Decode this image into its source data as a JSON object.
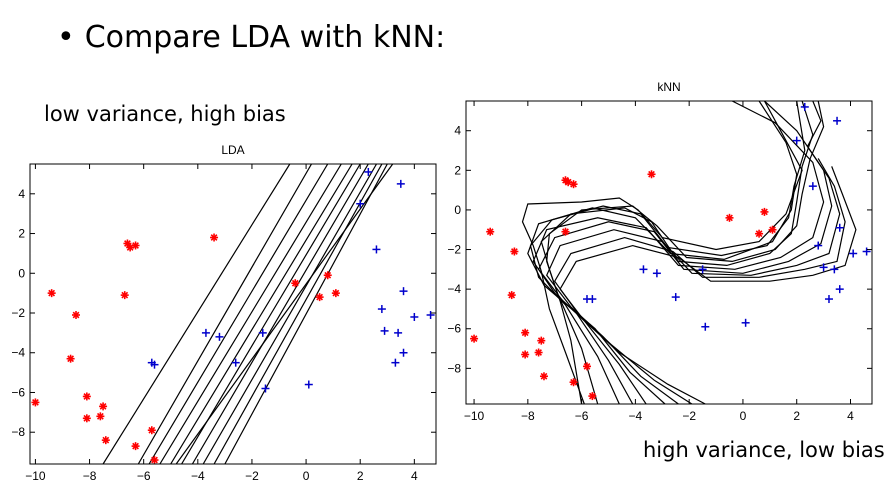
{
  "slide": {
    "bullet": "•",
    "heading": "Compare LDA with kNN:",
    "left_caption": "low variance, high bias",
    "right_caption": "high variance, low bias"
  },
  "colors": {
    "red_class": "#ff0000",
    "blue_class": "#0000cc",
    "boundary": "#000000"
  },
  "chart_data": [
    {
      "type": "scatter",
      "title": "LDA",
      "xlim": [
        -10.2,
        4.8
      ],
      "ylim": [
        -9.6,
        5.5
      ],
      "xticks": [
        -10,
        -8,
        -6,
        -4,
        -2,
        0,
        2,
        4
      ],
      "yticks": [
        4,
        2,
        0,
        -2,
        -4,
        -6,
        -8
      ],
      "grid": false,
      "series": [
        {
          "marker": "asterisk",
          "color": "#ff0000",
          "x": [
            -10.0,
            -9.4,
            -8.5,
            -8.7,
            -8.1,
            -8.1,
            -7.6,
            -7.5,
            -7.4,
            -6.6,
            -6.5,
            -6.3,
            -6.7,
            -5.7,
            -5.6,
            -6.3,
            -3.4,
            -0.4,
            0.5,
            0.8,
            1.1
          ],
          "y": [
            -6.5,
            -1.0,
            -2.1,
            -4.3,
            -6.2,
            -7.3,
            -7.2,
            -6.7,
            -8.4,
            1.5,
            1.3,
            -8.7,
            -1.1,
            -7.9,
            -9.4,
            1.4,
            1.8,
            -0.5,
            -1.2,
            -0.1,
            -1.0
          ]
        },
        {
          "marker": "plus",
          "color": "#0000cc",
          "x": [
            -5.7,
            -5.6,
            -3.7,
            -3.2,
            -2.6,
            -1.6,
            -1.5,
            0.1,
            2.0,
            2.3,
            2.6,
            2.8,
            2.9,
            3.3,
            3.4,
            3.5,
            3.6,
            3.6,
            4.0,
            4.6
          ],
          "y": [
            -4.5,
            -4.6,
            -3.0,
            -3.2,
            -4.5,
            -3.0,
            -5.8,
            -5.6,
            3.5,
            5.1,
            1.2,
            -1.8,
            -2.9,
            -4.5,
            -3.0,
            4.5,
            -4.0,
            -0.9,
            -2.2,
            -2.1
          ]
        }
      ],
      "boundaries": [
        [
          [
            -6.2,
            -9.6
          ],
          [
            0.2,
            5.5
          ]
        ],
        [
          [
            -5.8,
            -9.6
          ],
          [
            0.8,
            5.5
          ]
        ],
        [
          [
            -5.4,
            -9.6
          ],
          [
            1.3,
            5.5
          ]
        ],
        [
          [
            -5.0,
            -9.6
          ],
          [
            1.7,
            5.5
          ]
        ],
        [
          [
            -4.6,
            -9.6
          ],
          [
            2.0,
            5.5
          ]
        ],
        [
          [
            -4.2,
            -9.6
          ],
          [
            2.3,
            5.5
          ]
        ],
        [
          [
            -3.8,
            -9.6
          ],
          [
            2.6,
            5.5
          ]
        ],
        [
          [
            -3.4,
            -9.6
          ],
          [
            2.8,
            5.5
          ]
        ],
        [
          [
            -3.0,
            -9.6
          ],
          [
            3.0,
            5.5
          ]
        ],
        [
          [
            -7.5,
            -9.6
          ],
          [
            -0.6,
            5.5
          ]
        ],
        [
          [
            -4.8,
            -9.6
          ],
          [
            3.2,
            5.5
          ]
        ]
      ]
    },
    {
      "type": "scatter",
      "title": "kNN",
      "xlim": [
        -10.3,
        4.8
      ],
      "ylim": [
        -9.8,
        5.5
      ],
      "xticks": [
        -10,
        -8,
        -6,
        -4,
        -2,
        0,
        2,
        4
      ],
      "yticks": [
        4,
        2,
        0,
        -2,
        -4,
        -6,
        -8
      ],
      "grid": false,
      "series": [
        {
          "marker": "asterisk",
          "color": "#ff0000",
          "x": [
            -10.0,
            -9.4,
            -8.5,
            -8.6,
            -8.1,
            -8.1,
            -7.6,
            -7.5,
            -7.4,
            -6.6,
            -6.5,
            -6.3,
            -6.6,
            -5.8,
            -5.6,
            -6.3,
            -3.4,
            -0.5,
            0.6,
            0.8,
            1.1
          ],
          "y": [
            -6.5,
            -1.1,
            -2.1,
            -4.3,
            -6.2,
            -7.3,
            -7.2,
            -6.6,
            -8.4,
            1.5,
            1.4,
            -8.7,
            -1.1,
            -7.9,
            -9.4,
            1.3,
            1.8,
            -0.4,
            -1.2,
            -0.1,
            -1.0
          ]
        },
        {
          "marker": "plus",
          "color": "#0000cc",
          "x": [
            -5.8,
            -5.6,
            -3.7,
            -3.2,
            -2.5,
            -1.5,
            -1.4,
            0.1,
            2.0,
            2.3,
            2.6,
            2.8,
            3.0,
            3.2,
            3.4,
            3.5,
            3.6,
            3.6,
            4.1,
            4.6
          ],
          "y": [
            -4.5,
            -4.5,
            -3.0,
            -3.2,
            -4.4,
            -3.0,
            -5.9,
            -5.7,
            3.5,
            5.2,
            1.2,
            -1.8,
            -2.9,
            -4.5,
            -3.0,
            4.5,
            -4.0,
            -0.9,
            -2.2,
            -2.1
          ]
        }
      ],
      "boundaries": [
        [
          [
            -6.0,
            -9.8
          ],
          [
            -6.4,
            -6.6
          ],
          [
            -6.8,
            -4.6
          ],
          [
            -7.2,
            -3.0
          ],
          [
            -7.5,
            -1.6
          ],
          [
            -6.4,
            -0.2
          ],
          [
            -4.4,
            0.1
          ],
          [
            -3.4,
            -0.6
          ],
          [
            -2.4,
            -2.6
          ],
          [
            -0.6,
            -2.8
          ],
          [
            1.0,
            -2.2
          ],
          [
            1.8,
            -1.2
          ],
          [
            2.0,
            0.4
          ],
          [
            2.2,
            2.2
          ],
          [
            2.6,
            3.8
          ],
          [
            2.2,
            5.5
          ]
        ],
        [
          [
            -5.4,
            -9.8
          ],
          [
            -6.0,
            -7.0
          ],
          [
            -6.9,
            -4.2
          ],
          [
            -7.3,
            -2.6
          ],
          [
            -7.2,
            -1.2
          ],
          [
            -6.0,
            0.0
          ],
          [
            -4.1,
            0.2
          ],
          [
            -3.2,
            -0.8
          ],
          [
            -2.1,
            -2.4
          ],
          [
            -0.4,
            -2.6
          ],
          [
            1.2,
            -2.0
          ],
          [
            2.0,
            -0.8
          ],
          [
            2.2,
            0.8
          ],
          [
            2.5,
            2.6
          ],
          [
            3.0,
            4.2
          ],
          [
            2.8,
            5.5
          ]
        ],
        [
          [
            -4.6,
            -9.8
          ],
          [
            -5.4,
            -7.4
          ],
          [
            -6.6,
            -4.8
          ],
          [
            -7.6,
            -3.4
          ],
          [
            -7.9,
            -1.8
          ],
          [
            -7.1,
            -0.5
          ],
          [
            -5.2,
            0.2
          ],
          [
            -3.8,
            -0.2
          ],
          [
            -2.8,
            -1.9
          ],
          [
            -0.8,
            -2.3
          ],
          [
            0.9,
            -1.8
          ],
          [
            1.7,
            -0.4
          ],
          [
            1.9,
            1.2
          ],
          [
            2.3,
            3.0
          ],
          [
            2.0,
            5.5
          ]
        ],
        [
          [
            -4.1,
            -9.8
          ],
          [
            -5.0,
            -7.6
          ],
          [
            -6.2,
            -5.2
          ],
          [
            -7.4,
            -3.8
          ],
          [
            -8.0,
            -2.2
          ],
          [
            -7.6,
            -0.7
          ],
          [
            -5.6,
            0.1
          ],
          [
            -4.0,
            -0.4
          ],
          [
            -2.7,
            -2.2
          ],
          [
            -0.7,
            -2.5
          ],
          [
            1.1,
            -1.6
          ],
          [
            1.8,
            0.0
          ],
          [
            2.0,
            1.8
          ],
          [
            1.6,
            3.4
          ],
          [
            0.6,
            5.5
          ]
        ],
        [
          [
            -3.6,
            -9.8
          ],
          [
            -4.6,
            -7.8
          ],
          [
            -5.9,
            -5.6
          ],
          [
            -7.0,
            -4.2
          ],
          [
            -7.8,
            -2.6
          ],
          [
            -7.3,
            -1.0
          ],
          [
            -5.4,
            -0.4
          ],
          [
            -3.6,
            -0.9
          ],
          [
            -2.4,
            -2.8
          ],
          [
            -0.3,
            -3.0
          ],
          [
            1.4,
            -2.4
          ],
          [
            2.6,
            -1.4
          ],
          [
            3.0,
            0.4
          ],
          [
            2.6,
            2.4
          ],
          [
            1.2,
            4.4
          ],
          [
            -0.4,
            5.5
          ]
        ],
        [
          [
            -2.9,
            -9.8
          ],
          [
            -4.2,
            -8.2
          ],
          [
            -5.5,
            -6.0
          ],
          [
            -6.7,
            -4.6
          ],
          [
            -7.6,
            -3.0
          ],
          [
            -7.0,
            -1.4
          ],
          [
            -5.0,
            -0.6
          ],
          [
            -3.3,
            -1.1
          ],
          [
            -2.2,
            -3.0
          ],
          [
            0.0,
            -3.2
          ],
          [
            1.7,
            -2.6
          ],
          [
            2.9,
            -1.7
          ],
          [
            3.3,
            0.2
          ],
          [
            3.0,
            2.0
          ],
          [
            2.0,
            4.0
          ],
          [
            0.8,
            5.5
          ]
        ],
        [
          [
            -2.4,
            -9.8
          ],
          [
            -3.8,
            -8.4
          ],
          [
            -5.2,
            -6.4
          ],
          [
            -6.4,
            -4.9
          ],
          [
            -7.3,
            -3.3
          ],
          [
            -6.8,
            -1.8
          ],
          [
            -4.8,
            -1.0
          ],
          [
            -3.0,
            -1.6
          ],
          [
            -1.9,
            -3.2
          ],
          [
            0.3,
            -3.3
          ],
          [
            2.0,
            -2.8
          ],
          [
            3.2,
            -2.2
          ],
          [
            3.6,
            -0.2
          ],
          [
            3.2,
            1.6
          ],
          [
            2.4,
            3.2
          ],
          [
            2.9,
            4.5
          ],
          [
            2.6,
            5.5
          ]
        ],
        [
          [
            -1.9,
            -9.8
          ],
          [
            -3.3,
            -8.6
          ],
          [
            -4.9,
            -6.8
          ],
          [
            -6.1,
            -5.3
          ],
          [
            -7.0,
            -3.6
          ],
          [
            -6.4,
            -2.2
          ],
          [
            -4.4,
            -1.4
          ],
          [
            -2.6,
            -2.1
          ],
          [
            -1.5,
            -3.4
          ],
          [
            0.6,
            -3.4
          ],
          [
            2.3,
            -3.0
          ],
          [
            3.5,
            -2.6
          ],
          [
            3.8,
            -0.6
          ],
          [
            3.4,
            1.2
          ],
          [
            2.8,
            2.6
          ]
        ],
        [
          [
            -5.9,
            -9.8
          ],
          [
            -6.6,
            -7.2
          ],
          [
            -7.2,
            -5.0
          ],
          [
            -7.5,
            -3.1
          ],
          [
            -7.8,
            -1.8
          ],
          [
            -8.2,
            -0.6
          ],
          [
            -8.0,
            0.3
          ],
          [
            -6.0,
            0.4
          ],
          [
            -4.6,
            0.6
          ],
          [
            -3.9,
            0.0
          ],
          [
            -3.0,
            -1.4
          ],
          [
            -1.0,
            -2.0
          ],
          [
            0.6,
            -1.6
          ],
          [
            1.6,
            -0.2
          ],
          [
            2.2,
            2.0
          ],
          [
            1.4,
            4.0
          ],
          [
            0.8,
            5.5
          ]
        ],
        [
          [
            -1.4,
            -9.8
          ],
          [
            -2.8,
            -8.8
          ],
          [
            -4.6,
            -7.2
          ],
          [
            -5.9,
            -5.6
          ],
          [
            -6.8,
            -4.0
          ],
          [
            -6.2,
            -2.6
          ],
          [
            -4.1,
            -1.8
          ],
          [
            -2.4,
            -2.4
          ],
          [
            -1.2,
            -3.6
          ],
          [
            1.0,
            -3.6
          ],
          [
            2.6,
            -3.3
          ],
          [
            3.8,
            -2.8
          ],
          [
            4.2,
            -1.0
          ],
          [
            3.7,
            0.8
          ],
          [
            3.3,
            2.2
          ]
        ]
      ]
    }
  ]
}
